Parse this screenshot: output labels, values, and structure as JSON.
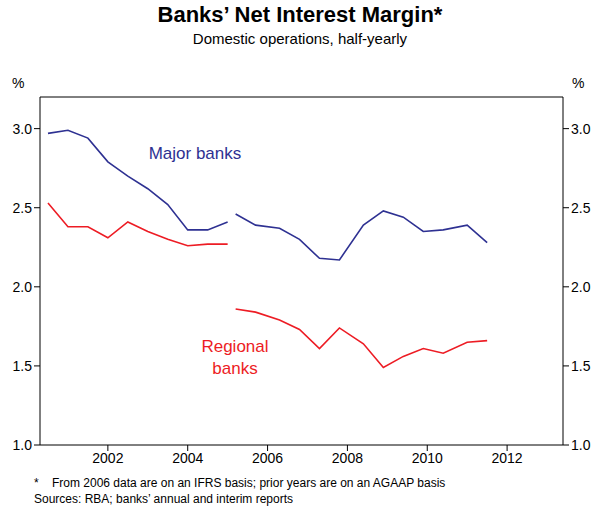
{
  "chart_data": {
    "type": "line",
    "title": "Banks’ Net Interest Margin*",
    "subtitle": "Domestic operations, half-yearly",
    "y_label": "%",
    "y2_label": "%",
    "x": [
      2000.5,
      2001,
      2001.5,
      2002,
      2002.5,
      2003,
      2003.5,
      2004,
      2004.5,
      2005,
      2005.1,
      2005.2,
      2005.7,
      2006.3,
      2006.8,
      2007.3,
      2007.8,
      2008.4,
      2008.9,
      2009.4,
      2009.9,
      2010.4,
      2011.0,
      2011.5
    ],
    "series": [
      {
        "name": "Major banks",
        "color": "#2e3192",
        "values": [
          2.97,
          2.99,
          2.94,
          2.79,
          2.7,
          2.62,
          2.52,
          2.36,
          2.36,
          2.41,
          null,
          2.46,
          2.39,
          2.37,
          2.3,
          2.18,
          2.17,
          2.39,
          2.48,
          2.44,
          2.35,
          2.36,
          2.39,
          2.28
        ]
      },
      {
        "name": "Regional banks",
        "color": "#ed1c24",
        "values": [
          2.53,
          2.38,
          2.38,
          2.31,
          2.41,
          2.35,
          2.3,
          2.26,
          2.27,
          2.27,
          null,
          1.86,
          1.84,
          1.79,
          1.73,
          1.61,
          1.74,
          1.64,
          1.49,
          1.56,
          1.61,
          1.58,
          1.65,
          1.66
        ]
      }
    ],
    "xlim": [
      2000.3,
      2013.4
    ],
    "xticks": [
      2002,
      2004,
      2006,
      2008,
      2010,
      2012
    ],
    "ylim": [
      1,
      3.2
    ],
    "yticks": [
      {
        "value": 1,
        "label": "1.0"
      },
      {
        "value": 1.5,
        "label": "1.5"
      },
      {
        "value": 2,
        "label": "2.0"
      },
      {
        "value": 2.5,
        "label": "2.5"
      },
      {
        "value": 3,
        "label": "3.0"
      }
    ],
    "y2lim": [
      1,
      3.2
    ],
    "y2ticks": [
      {
        "value": 1,
        "label": "1.0"
      },
      {
        "value": 1.5,
        "label": "1.5"
      },
      {
        "value": 2,
        "label": "2.0"
      },
      {
        "value": 2.5,
        "label": "2.5"
      },
      {
        "value": 3,
        "label": "3.0"
      }
    ],
    "grid": false,
    "footnotes": [
      "*    From 2006 data are on an IFRS basis; prior years are on an AGAAP basis",
      "Sources: RBA; banks’ annual and interim reports"
    ]
  }
}
